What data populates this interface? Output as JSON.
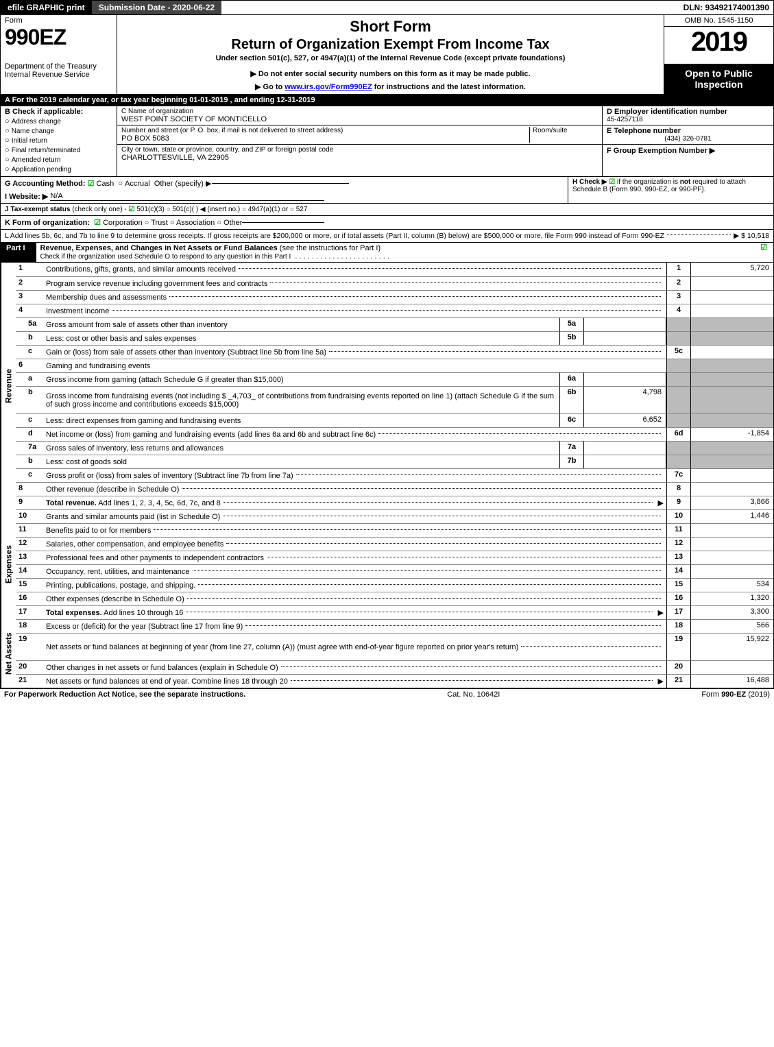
{
  "topbar": {
    "efile": "efile GRAPHIC print",
    "submission": "Submission Date - 2020-06-22",
    "dln": "DLN: 93492174001390"
  },
  "header": {
    "form_label": "Form",
    "form_num": "990EZ",
    "dept1": "Department of the Treasury",
    "dept2": "Internal Revenue Service",
    "short_form": "Short Form",
    "return_title": "Return of Organization Exempt From Income Tax",
    "subtitle": "Under section 501(c), 527, or 4947(a)(1) of the Internal Revenue Code (except private foundations)",
    "note1": "▶ Do not enter social security numbers on this form as it may be made public.",
    "note2_pre": "▶ Go to ",
    "note2_link": "www.irs.gov/Form990EZ",
    "note2_post": " for instructions and the latest information.",
    "omb": "OMB No. 1545-1150",
    "year": "2019",
    "open": "Open to Public Inspection"
  },
  "lineA": "A  For the 2019 calendar year, or tax year beginning 01-01-2019 , and ending 12-31-2019",
  "entity": {
    "B_label": "B  Check if applicable:",
    "checks": [
      "Address change",
      "Name change",
      "Initial return",
      "Final return/terminated",
      "Amended return",
      "Application pending"
    ],
    "C_label": "C Name of organization",
    "C_val": "WEST POINT SOCIETY OF MONTICELLO",
    "addr_label": "Number and street (or P. O. box, if mail is not delivered to street address)",
    "room_label": "Room/suite",
    "addr_val": "PO BOX 5083",
    "city_label": "City or town, state or province, country, and ZIP or foreign postal code",
    "city_val": "CHARLOTTESVILLE, VA  22905",
    "D_label": "D Employer identification number",
    "D_val": "45-4257118",
    "E_label": "E Telephone number",
    "E_val": "(434) 326-0781",
    "F_label": "F Group Exemption Number  ▶"
  },
  "meta": {
    "G_label": "G Accounting Method:",
    "G_cash": "Cash",
    "G_accrual": "Accrual",
    "G_other": "Other (specify) ▶",
    "H_label": "H  Check ▶",
    "H_text1": "if the organization is ",
    "H_not": "not",
    "H_text2": " required to attach Schedule B (Form 990, 990-EZ, or 990-PF).",
    "I_label": "I Website: ▶",
    "I_val": "N/A",
    "J_label": "J Tax-exempt status",
    "J_note": "(check only one) -",
    "J_opts": "501(c)(3)   ○ 501(c)(  ) ◀ (insert no.)  ○ 4947(a)(1) or  ○ 527",
    "K_label": "K Form of organization:",
    "K_opts": "Corporation   ○ Trust   ○ Association   ○ Other",
    "L_text": "L Add lines 5b, 6c, and 7b to line 9 to determine gross receipts. If gross receipts are $200,000 or more, or if total assets (Part II, column (B) below) are $500,000 or more, file Form 990 instead of Form 990-EZ",
    "L_val": "▶ $ 10,518"
  },
  "part1": {
    "label": "Part I",
    "title": "Revenue, Expenses, and Changes in Net Assets or Fund Balances",
    "title_note": "(see the instructions for Part I)",
    "subtitle": "Check if the organization used Schedule O to respond to any question in this Part I"
  },
  "sections": {
    "revenue": "Revenue",
    "expenses": "Expenses",
    "netassets": "Net Assets"
  },
  "lines": [
    {
      "section": "revenue",
      "n": "1",
      "desc": "Contributions, gifts, grants, and similar amounts received",
      "rn": "1",
      "rv": "5,720"
    },
    {
      "section": "revenue",
      "n": "2",
      "desc": "Program service revenue including government fees and contracts",
      "rn": "2",
      "rv": ""
    },
    {
      "section": "revenue",
      "n": "3",
      "desc": "Membership dues and assessments",
      "rn": "3",
      "rv": ""
    },
    {
      "section": "revenue",
      "n": "4",
      "desc": "Investment income",
      "rn": "4",
      "rv": ""
    },
    {
      "section": "revenue",
      "n": "5a",
      "sub": true,
      "desc": "Gross amount from sale of assets other than inventory",
      "mn": "5a",
      "mv": "",
      "shadeR": true
    },
    {
      "section": "revenue",
      "n": "b",
      "sub": true,
      "desc": "Less: cost or other basis and sales expenses",
      "mn": "5b",
      "mv": "",
      "shadeR": true
    },
    {
      "section": "revenue",
      "n": "c",
      "sub": true,
      "desc": "Gain or (loss) from sale of assets other than inventory (Subtract line 5b from line 5a)",
      "rn": "5c",
      "rv": ""
    },
    {
      "section": "revenue",
      "n": "6",
      "desc": "Gaming and fundraising events",
      "shadeR": true,
      "nodots": true
    },
    {
      "section": "revenue",
      "n": "a",
      "sub": true,
      "desc": "Gross income from gaming (attach Schedule G if greater than $15,000)",
      "mn": "6a",
      "mv": "",
      "shadeR": true
    },
    {
      "section": "revenue",
      "n": "b",
      "sub": true,
      "desc_html": true,
      "desc": "Gross income from fundraising events (not including $ _4,703_ of contributions from fundraising events reported on line 1) (attach Schedule G if the sum of such gross income and contributions exceeds $15,000)",
      "mn": "6b",
      "mv": "4,798",
      "shadeR": true,
      "tall": true
    },
    {
      "section": "revenue",
      "n": "c",
      "sub": true,
      "desc": "Less: direct expenses from gaming and fundraising events",
      "mn": "6c",
      "mv": "6,652",
      "shadeR": true
    },
    {
      "section": "revenue",
      "n": "d",
      "sub": true,
      "desc": "Net income or (loss) from gaming and fundraising events (add lines 6a and 6b and subtract line 6c)",
      "rn": "6d",
      "rv": "-1,854"
    },
    {
      "section": "revenue",
      "n": "7a",
      "sub": true,
      "desc": "Gross sales of inventory, less returns and allowances",
      "mn": "7a",
      "mv": "",
      "shadeR": true
    },
    {
      "section": "revenue",
      "n": "b",
      "sub": true,
      "desc": "Less: cost of goods sold",
      "mn": "7b",
      "mv": "",
      "shadeR": true
    },
    {
      "section": "revenue",
      "n": "c",
      "sub": true,
      "desc": "Gross profit or (loss) from sales of inventory (Subtract line 7b from line 7a)",
      "rn": "7c",
      "rv": ""
    },
    {
      "section": "revenue",
      "n": "8",
      "desc": "Other revenue (describe in Schedule O)",
      "rn": "8",
      "rv": ""
    },
    {
      "section": "revenue",
      "n": "9",
      "bold": true,
      "desc": "Total revenue. Add lines 1, 2, 3, 4, 5c, 6d, 7c, and 8",
      "arrow": true,
      "rn": "9",
      "rv": "3,866"
    },
    {
      "section": "expenses",
      "n": "10",
      "desc": "Grants and similar amounts paid (list in Schedule O)",
      "rn": "10",
      "rv": "1,446"
    },
    {
      "section": "expenses",
      "n": "11",
      "desc": "Benefits paid to or for members",
      "rn": "11",
      "rv": ""
    },
    {
      "section": "expenses",
      "n": "12",
      "desc": "Salaries, other compensation, and employee benefits",
      "rn": "12",
      "rv": ""
    },
    {
      "section": "expenses",
      "n": "13",
      "desc": "Professional fees and other payments to independent contractors",
      "rn": "13",
      "rv": ""
    },
    {
      "section": "expenses",
      "n": "14",
      "desc": "Occupancy, rent, utilities, and maintenance",
      "rn": "14",
      "rv": ""
    },
    {
      "section": "expenses",
      "n": "15",
      "desc": "Printing, publications, postage, and shipping.",
      "rn": "15",
      "rv": "534"
    },
    {
      "section": "expenses",
      "n": "16",
      "desc": "Other expenses (describe in Schedule O)",
      "rn": "16",
      "rv": "1,320"
    },
    {
      "section": "expenses",
      "n": "17",
      "bold": true,
      "desc": "Total expenses. Add lines 10 through 16",
      "arrow": true,
      "rn": "17",
      "rv": "3,300"
    },
    {
      "section": "netassets",
      "n": "18",
      "desc": "Excess or (deficit) for the year (Subtract line 17 from line 9)",
      "rn": "18",
      "rv": "566"
    },
    {
      "section": "netassets",
      "n": "19",
      "desc": "Net assets or fund balances at beginning of year (from line 27, column (A)) (must agree with end-of-year figure reported on prior year's return)",
      "rn": "19",
      "rv": "15,922",
      "tall": true,
      "shadeRtop": true
    },
    {
      "section": "netassets",
      "n": "20",
      "desc": "Other changes in net assets or fund balances (explain in Schedule O)",
      "rn": "20",
      "rv": ""
    },
    {
      "section": "netassets",
      "n": "21",
      "desc": "Net assets or fund balances at end of year. Combine lines 18 through 20",
      "arrow": true,
      "rn": "21",
      "rv": "16,488"
    }
  ],
  "footer": {
    "left": "For Paperwork Reduction Act Notice, see the separate instructions.",
    "center": "Cat. No. 10642I",
    "right_pre": "Form ",
    "right_form": "990-EZ",
    "right_post": " (2019)"
  },
  "colors": {
    "black": "#000000",
    "white": "#ffffff",
    "shade": "#bbbbbb",
    "check_green": "#00aa00",
    "link_blue": "#0000ee"
  }
}
